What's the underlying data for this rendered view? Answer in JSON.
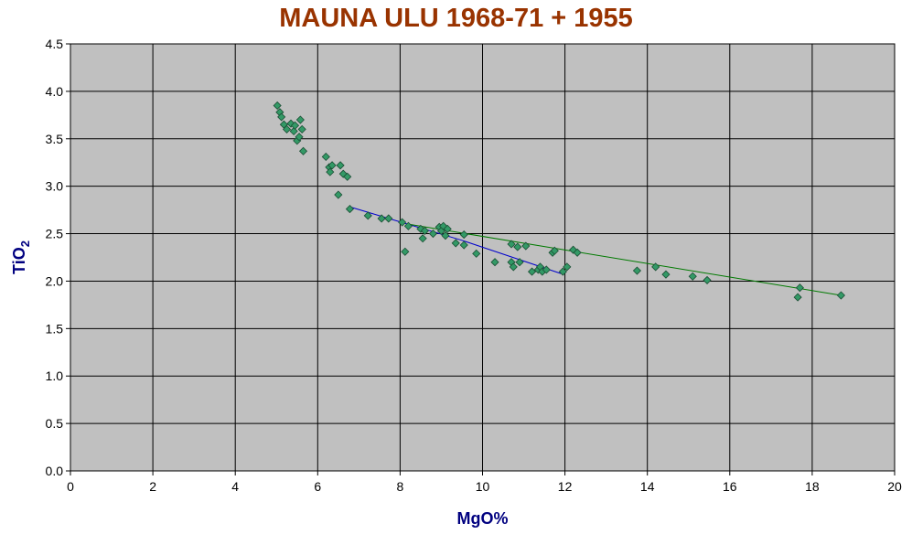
{
  "chart_data": {
    "type": "scatter",
    "title": "MAUNA ULU 1968-71 + 1955",
    "xlabel": "MgO%",
    "ylabel_main": "TiO",
    "ylabel_sub": "2",
    "xlim": [
      0,
      20
    ],
    "ylim": [
      0,
      4.5
    ],
    "x_ticks": [
      "0",
      "2",
      "4",
      "6",
      "8",
      "10",
      "12",
      "14",
      "16",
      "18",
      "20"
    ],
    "y_ticks": [
      "0.0",
      "0.5",
      "1.0",
      "1.5",
      "2.0",
      "2.5",
      "3.0",
      "3.5",
      "4.0",
      "4.5"
    ],
    "grid": true,
    "colors": {
      "plot_bg": "#c0c0c0",
      "marker_fill": "#339966",
      "marker_stroke": "#1a4d33",
      "trend_1": "#0000cc",
      "trend_2": "#007a00",
      "title": "#993300",
      "axis_label": "#000080"
    },
    "series": [
      {
        "marker": "diamond",
        "points": [
          [
            5.02,
            3.85
          ],
          [
            5.08,
            3.78
          ],
          [
            5.12,
            3.73
          ],
          [
            5.18,
            3.65
          ],
          [
            5.25,
            3.6
          ],
          [
            5.35,
            3.66
          ],
          [
            5.42,
            3.58
          ],
          [
            5.45,
            3.64
          ],
          [
            5.5,
            3.48
          ],
          [
            5.55,
            3.52
          ],
          [
            5.58,
            3.7
          ],
          [
            5.62,
            3.6
          ],
          [
            5.65,
            3.37
          ],
          [
            6.2,
            3.31
          ],
          [
            6.28,
            3.2
          ],
          [
            6.3,
            3.15
          ],
          [
            6.35,
            3.22
          ],
          [
            6.55,
            3.22
          ],
          [
            6.62,
            3.13
          ],
          [
            6.72,
            3.1
          ],
          [
            6.5,
            2.91
          ],
          [
            6.78,
            2.76
          ],
          [
            7.22,
            2.69
          ],
          [
            7.55,
            2.66
          ],
          [
            7.72,
            2.66
          ],
          [
            8.05,
            2.62
          ],
          [
            8.2,
            2.58
          ],
          [
            8.12,
            2.31
          ],
          [
            8.5,
            2.55
          ],
          [
            8.55,
            2.45
          ],
          [
            8.6,
            2.53
          ],
          [
            8.8,
            2.5
          ],
          [
            8.95,
            2.57
          ],
          [
            9.0,
            2.53
          ],
          [
            9.05,
            2.58
          ],
          [
            9.1,
            2.48
          ],
          [
            9.15,
            2.55
          ],
          [
            9.35,
            2.4
          ],
          [
            9.55,
            2.49
          ],
          [
            9.55,
            2.38
          ],
          [
            9.85,
            2.29
          ],
          [
            10.3,
            2.2
          ],
          [
            10.7,
            2.2
          ],
          [
            10.75,
            2.15
          ],
          [
            10.7,
            2.39
          ],
          [
            10.85,
            2.36
          ],
          [
            10.9,
            2.2
          ],
          [
            11.05,
            2.37
          ],
          [
            11.2,
            2.1
          ],
          [
            11.35,
            2.12
          ],
          [
            11.4,
            2.15
          ],
          [
            11.45,
            2.1
          ],
          [
            11.55,
            2.12
          ],
          [
            11.7,
            2.3
          ],
          [
            11.75,
            2.32
          ],
          [
            11.95,
            2.1
          ],
          [
            12.05,
            2.15
          ],
          [
            12.2,
            2.33
          ],
          [
            12.3,
            2.3
          ],
          [
            13.75,
            2.11
          ],
          [
            14.2,
            2.15
          ],
          [
            14.45,
            2.07
          ],
          [
            15.1,
            2.05
          ],
          [
            15.45,
            2.01
          ],
          [
            17.65,
            1.83
          ],
          [
            17.7,
            1.93
          ],
          [
            18.7,
            1.85
          ]
        ]
      }
    ],
    "trendlines": [
      {
        "points": [
          [
            6.8,
            2.78
          ],
          [
            9.5,
            2.43
          ],
          [
            11.9,
            2.08
          ]
        ]
      },
      {
        "points": [
          [
            8.2,
            2.6
          ],
          [
            18.7,
            1.85
          ]
        ]
      }
    ]
  }
}
